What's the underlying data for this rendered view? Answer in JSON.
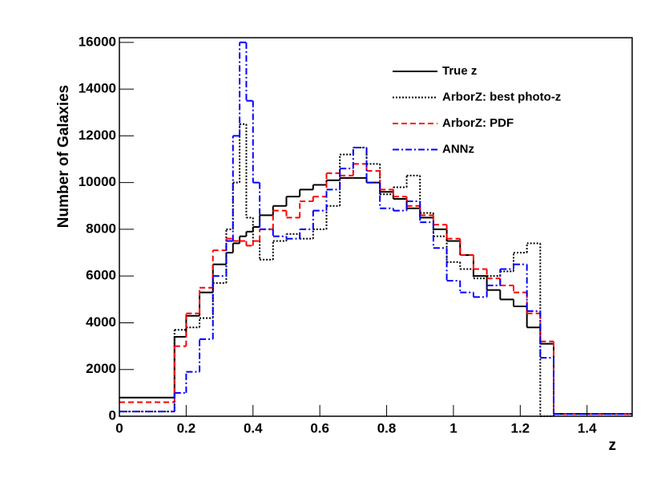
{
  "chart_data": {
    "type": "histogram",
    "xlabel": "z",
    "ylabel": "Number of Galaxies",
    "bins": [
      0,
      0.165,
      0.2,
      0.24,
      0.28,
      0.32,
      0.34,
      0.36,
      0.38,
      0.4,
      0.42,
      0.46,
      0.5,
      0.54,
      0.58,
      0.62,
      0.66,
      0.7,
      0.74,
      0.78,
      0.82,
      0.86,
      0.9,
      0.94,
      0.98,
      1.02,
      1.06,
      1.1,
      1.14,
      1.18,
      1.22,
      1.26,
      1.3,
      1.535
    ],
    "series": [
      {
        "name": "True z",
        "color": "#000000",
        "dash": "solid",
        "values": [
          800,
          3400,
          4300,
          5300,
          6500,
          7000,
          7400,
          7700,
          7900,
          8100,
          8600,
          9000,
          9400,
          9700,
          9900,
          10100,
          10200,
          10200,
          10000,
          9600,
          9300,
          8900,
          8500,
          8000,
          7500,
          6900,
          6000,
          5400,
          5000,
          4700,
          3800,
          3100,
          100
        ]
      },
      {
        "name": "ArborZ: best photo-z",
        "color": "#000000",
        "dash": "dotted",
        "values": [
          200,
          3700,
          3800,
          4200,
          5700,
          8000,
          10000,
          12500,
          8500,
          7500,
          6700,
          7500,
          7800,
          7600,
          8000,
          9000,
          11200,
          11500,
          10800,
          9500,
          9800,
          10300,
          8700,
          7700,
          6600,
          6300,
          5900,
          6000,
          6200,
          7000,
          7400,
          0,
          100
        ]
      },
      {
        "name": "ArborZ: PDF",
        "color": "#ff0000",
        "dash": "dashed",
        "values": [
          600,
          3000,
          4400,
          5500,
          7100,
          7600,
          7500,
          7500,
          7300,
          7500,
          8000,
          8800,
          8500,
          9200,
          9400,
          10400,
          10300,
          10800,
          10500,
          9700,
          9400,
          9000,
          8600,
          8200,
          7600,
          6900,
          6300,
          5900,
          5600,
          5300,
          4400,
          3200,
          100
        ]
      },
      {
        "name": "ANNz",
        "color": "#0000ff",
        "dash": "dashdot",
        "values": [
          200,
          1000,
          1900,
          3300,
          6000,
          7500,
          12000,
          16000,
          13500,
          10000,
          8000,
          7700,
          7600,
          8000,
          8800,
          9700,
          10600,
          11500,
          10000,
          8900,
          8800,
          9200,
          8300,
          7200,
          5800,
          5300,
          5100,
          5600,
          6300,
          6500,
          4500,
          2500,
          100
        ]
      }
    ],
    "xlim": [
      0,
      1.535
    ],
    "xticks": [
      0,
      0.2,
      0.4,
      0.6,
      0.8,
      1,
      1.2,
      1.4
    ],
    "ylim": [
      0,
      16200
    ],
    "yticks": [
      0,
      2000,
      4000,
      6000,
      8000,
      10000,
      12000,
      14000,
      16000
    ],
    "legend": "upper right"
  }
}
